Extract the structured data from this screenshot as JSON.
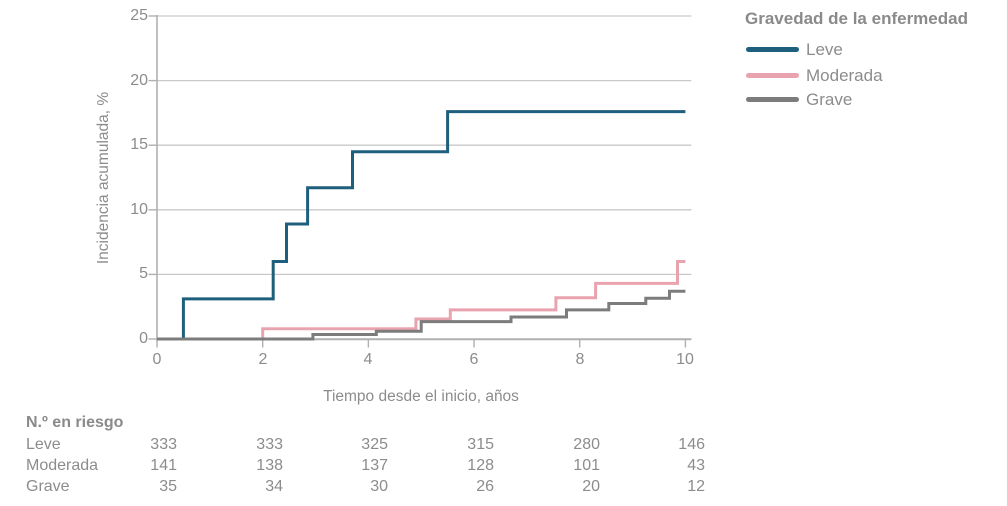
{
  "chart_data": {
    "type": "line",
    "subtype": "step-cumulative-incidence",
    "title": "",
    "x_label": "Tiempo desde el inicio, años",
    "y_label": "Incidencia acumulada, %",
    "xlim": [
      0,
      10
    ],
    "ylim": [
      0,
      25
    ],
    "x_ticks": [
      0,
      2,
      4,
      6,
      8,
      10
    ],
    "y_ticks": [
      0,
      5,
      10,
      15,
      20,
      25
    ],
    "grid": "horizontal",
    "legend_position": "top-right",
    "legend_title": "Gravedad de la enfermedad",
    "series": [
      {
        "name": "Leve",
        "color": "#1f5f7e",
        "steps": [
          [
            0,
            0
          ],
          [
            0.5,
            3.1
          ],
          [
            2.2,
            6.0
          ],
          [
            2.45,
            8.9
          ],
          [
            2.85,
            11.7
          ],
          [
            3.7,
            14.5
          ],
          [
            5.5,
            17.6
          ],
          [
            10,
            17.6
          ]
        ]
      },
      {
        "name": "Moderada",
        "color": "#e9a3af",
        "steps": [
          [
            0,
            0
          ],
          [
            2.0,
            0.8
          ],
          [
            4.9,
            1.55
          ],
          [
            5.55,
            2.25
          ],
          [
            7.55,
            3.2
          ],
          [
            8.3,
            4.3
          ],
          [
            9.85,
            6.0
          ],
          [
            10,
            6.0
          ]
        ]
      },
      {
        "name": "Grave",
        "color": "#7c7c7c",
        "steps": [
          [
            0,
            0
          ],
          [
            2.95,
            0.35
          ],
          [
            4.15,
            0.6
          ],
          [
            5.0,
            1.35
          ],
          [
            6.7,
            1.7
          ],
          [
            7.75,
            2.25
          ],
          [
            8.55,
            2.75
          ],
          [
            9.25,
            3.15
          ],
          [
            9.7,
            3.7
          ],
          [
            10,
            3.7
          ]
        ]
      }
    ]
  },
  "legend": {
    "title": "Gravedad de la enfermedad",
    "items": [
      {
        "label": "Leve",
        "color": "#1f5f7e"
      },
      {
        "label": "Moderada",
        "color": "#e9a3af"
      },
      {
        "label": "Grave",
        "color": "#7c7c7c"
      }
    ]
  },
  "risk_table": {
    "title": "N.º en riesgo",
    "time_points": [
      0,
      2,
      4,
      6,
      8,
      10
    ],
    "rows": [
      {
        "label": "Leve",
        "values": [
          "333",
          "333",
          "325",
          "315",
          "280",
          "146"
        ]
      },
      {
        "label": "Moderada",
        "values": [
          "141",
          "138",
          "137",
          "128",
          "101",
          "43"
        ]
      },
      {
        "label": "Grave",
        "values": [
          "35",
          "34",
          "30",
          "26",
          "20",
          "12"
        ]
      }
    ]
  },
  "colors": {
    "text": "#8c8c8c",
    "axis": "#b0b0b0",
    "grid": "#c9c9c9",
    "background": "#ffffff"
  }
}
